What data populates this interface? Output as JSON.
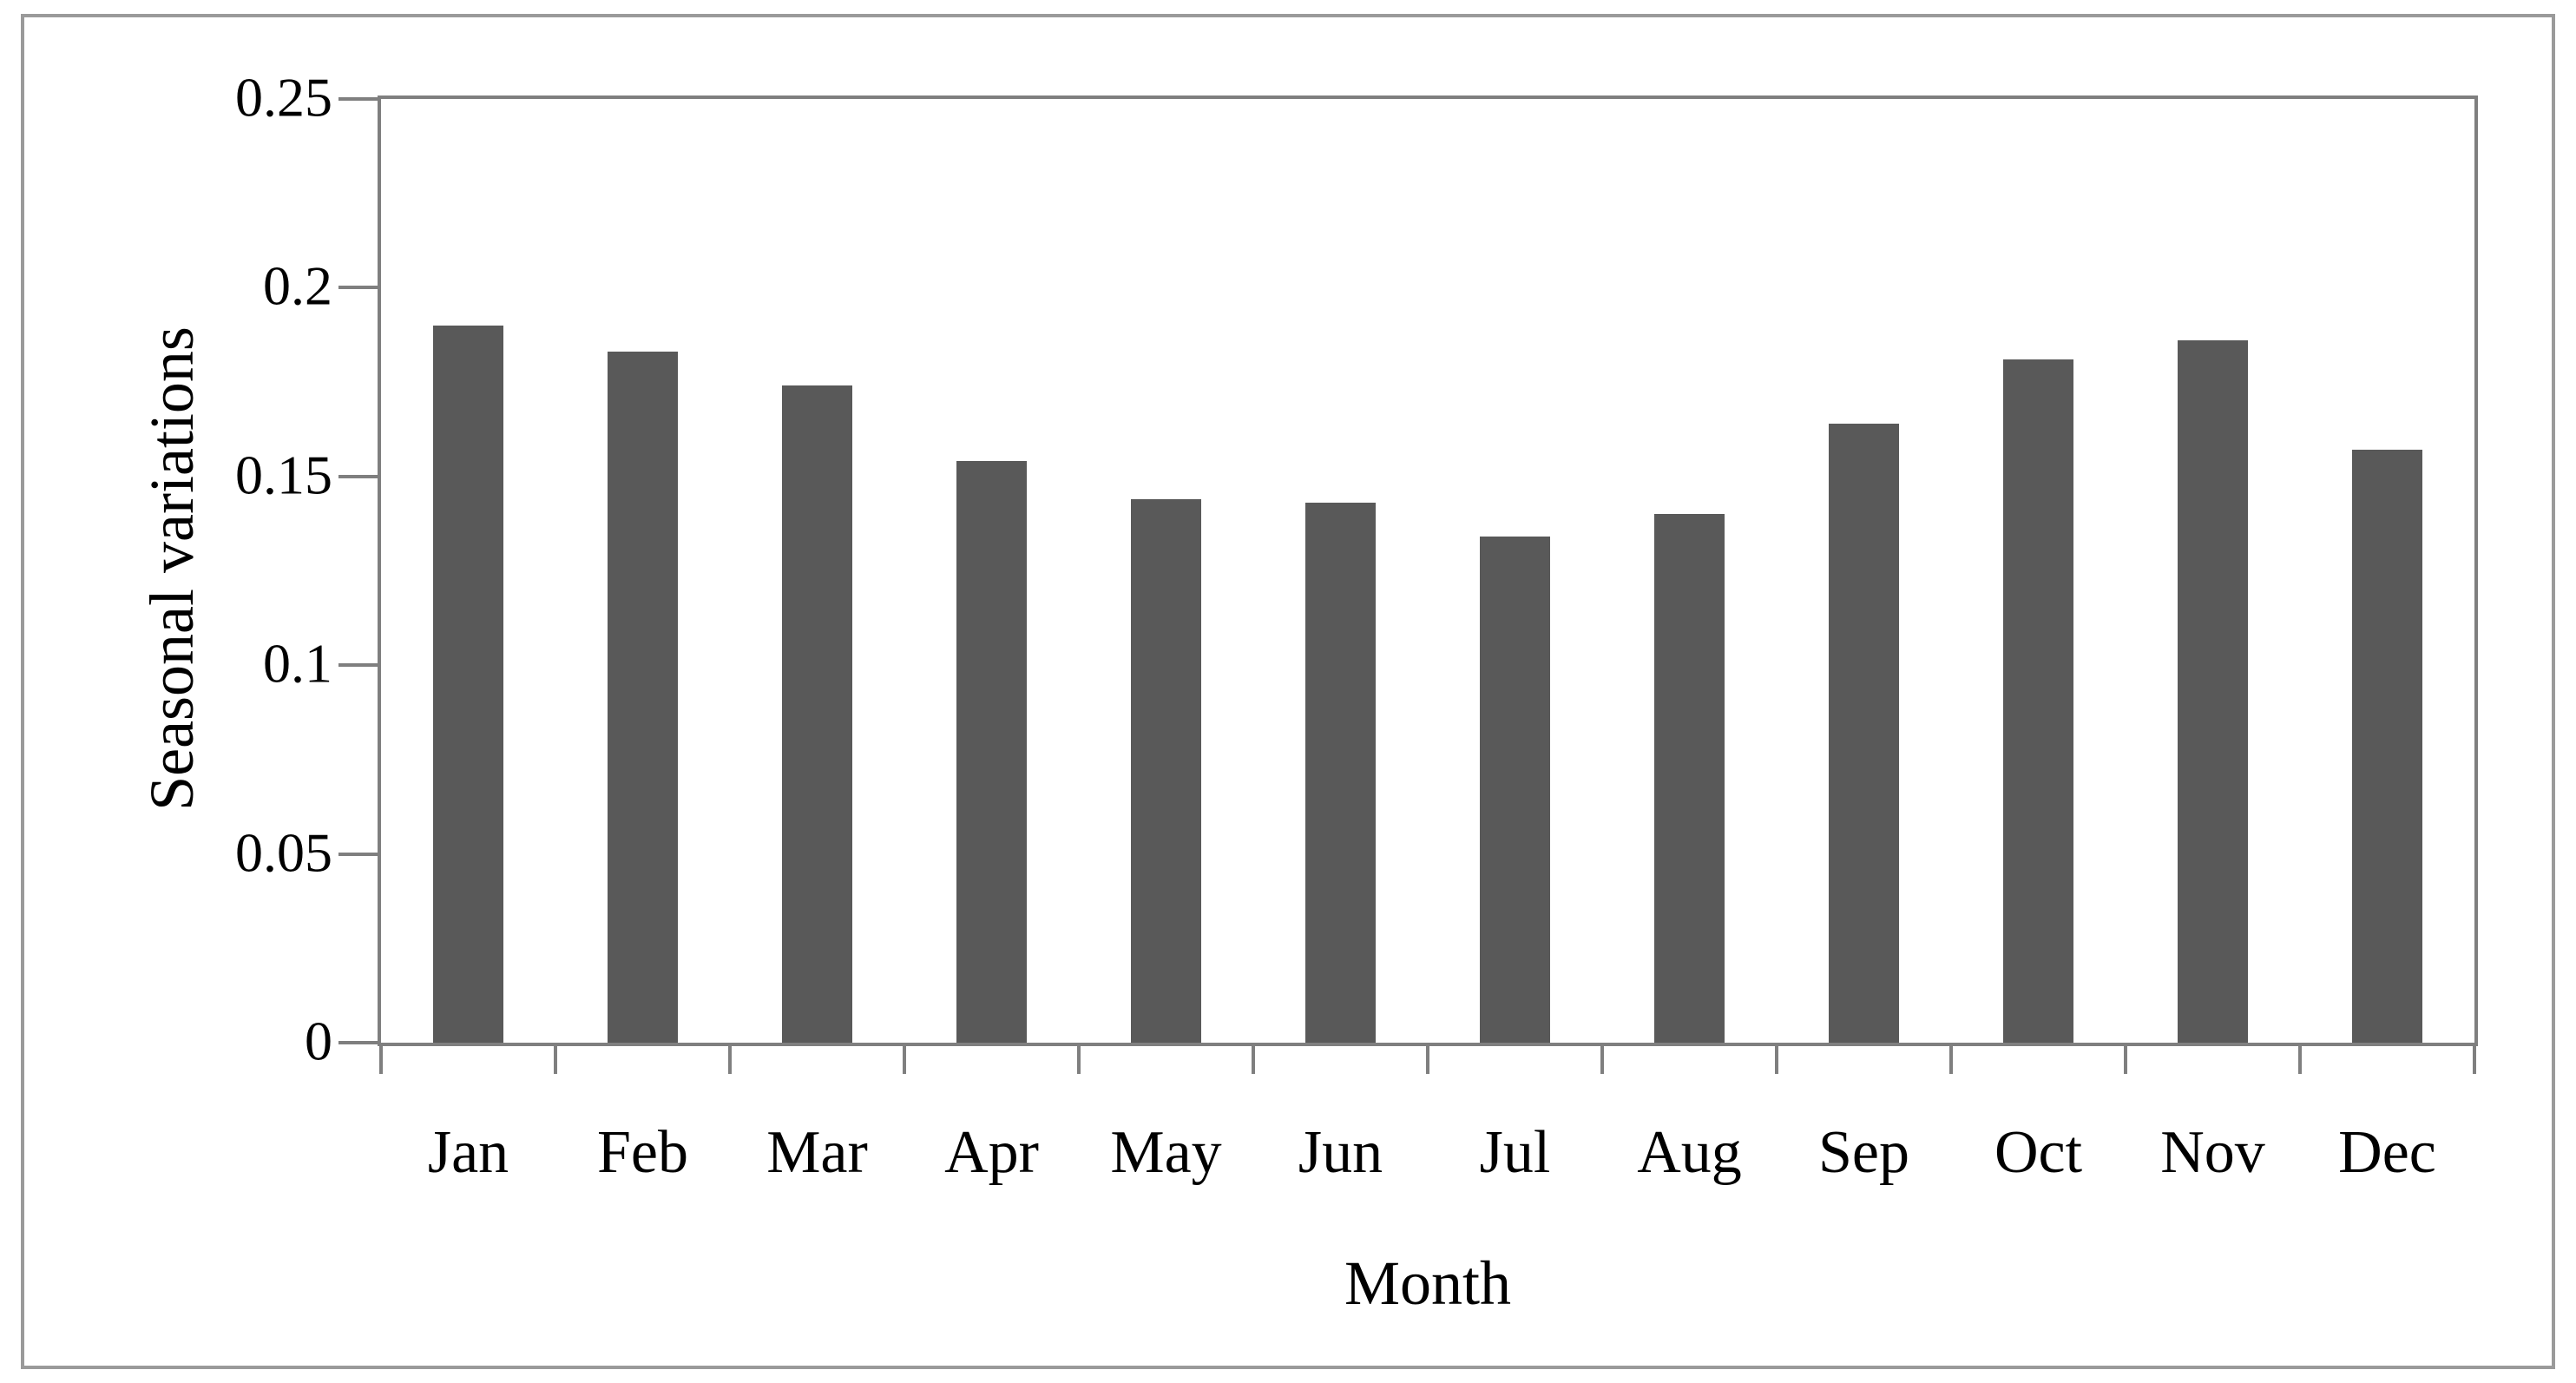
{
  "figure": {
    "background": "#ffffff",
    "frame_color": "#9a9a9a"
  },
  "chart_data": {
    "type": "bar",
    "title": "",
    "categories": [
      "Jan",
      "Feb",
      "Mar",
      "Apr",
      "May",
      "Jun",
      "Jul",
      "Aug",
      "Sep",
      "Oct",
      "Nov",
      "Dec"
    ],
    "values": [
      0.19,
      0.183,
      0.174,
      0.154,
      0.144,
      0.143,
      0.134,
      0.14,
      0.164,
      0.181,
      0.186,
      0.157
    ],
    "xlabel": "Month",
    "ylabel": "Seasonal variations",
    "ylim": [
      0,
      0.25
    ],
    "yticks": [
      0,
      0.05,
      0.1,
      0.15,
      0.2,
      0.25
    ],
    "ytick_labels": [
      "0",
      "0.05",
      "0.1",
      "0.15",
      "0.2",
      "0.25"
    ],
    "bar_color": "#595959",
    "axis_color": "#7f7f7f",
    "bar_width_fraction": 0.4,
    "grid": false,
    "legend": "none"
  }
}
